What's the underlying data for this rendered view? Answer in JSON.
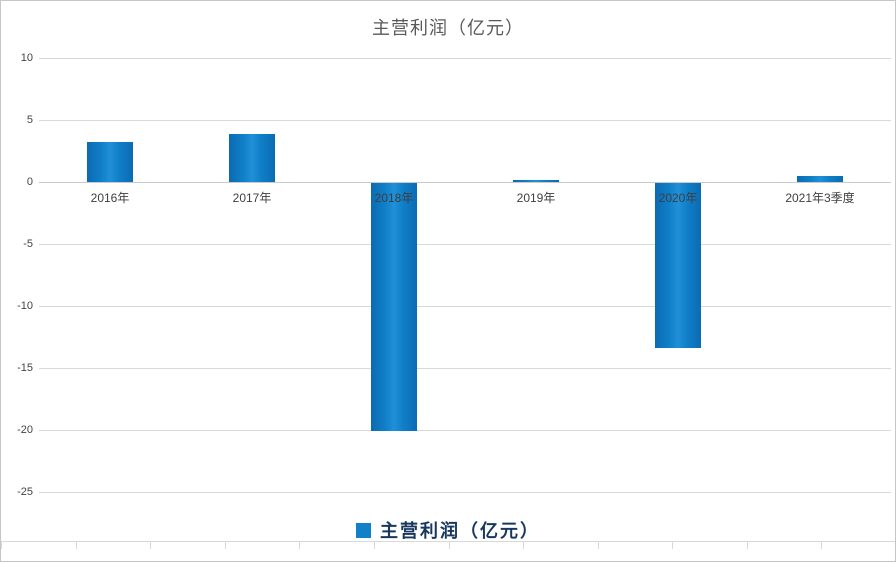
{
  "title": "主营利润（亿元）",
  "legend": {
    "label": "主营利润（亿元）"
  },
  "colors": {
    "bar": "#1080c9",
    "title_text": "#595959",
    "legend_text": "#17375e",
    "gridline": "#d9d9d9",
    "axis_label": "#444444"
  },
  "chart_data": {
    "type": "bar",
    "title": "主营利润（亿元）",
    "categories": [
      "2016年",
      "2017年",
      "2018年",
      "2019年",
      "2020年",
      "2021年3季度"
    ],
    "values": [
      3.2,
      3.9,
      -20.0,
      0.15,
      -13.3,
      0.5
    ],
    "series_name": "主营利润（亿元）",
    "xlabel": "",
    "ylabel": "",
    "ylim": [
      -25,
      10
    ],
    "yticks": [
      10,
      5,
      0,
      -5,
      -10,
      -15,
      -20,
      -25
    ],
    "grid": "horizontal",
    "legend_position": "bottom"
  }
}
